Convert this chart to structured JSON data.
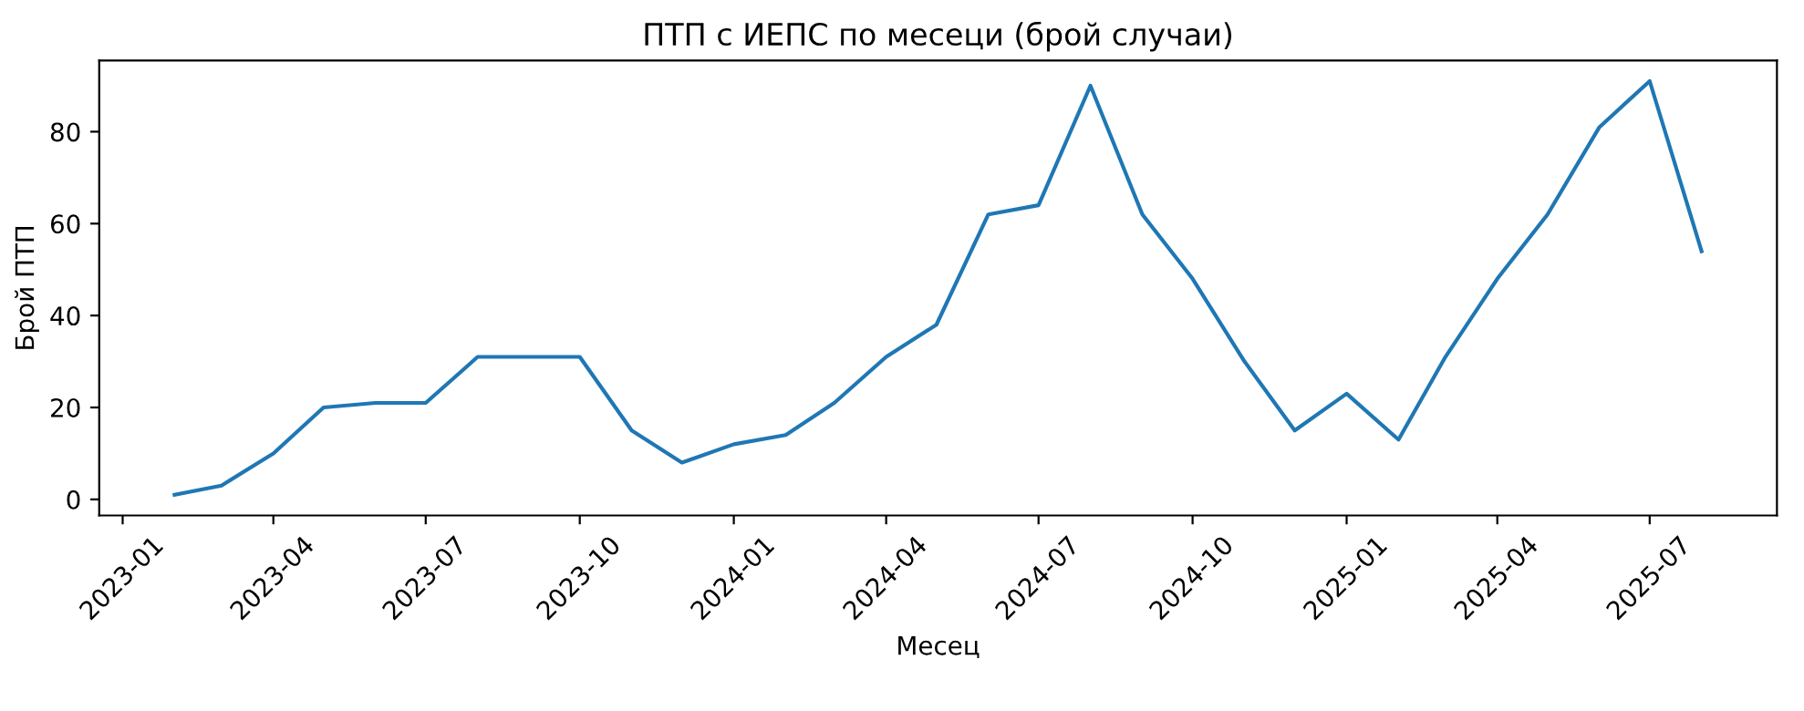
{
  "chart_data": {
    "type": "line",
    "title": "ПТП с ИЕПС по месеци (брой случаи)",
    "xlabel": "Месец",
    "ylabel": "Брой ПТП",
    "x": [
      "2023-02",
      "2023-03",
      "2023-04",
      "2023-05",
      "2023-06",
      "2023-07",
      "2023-08",
      "2023-09",
      "2023-10",
      "2023-11",
      "2023-12",
      "2024-01",
      "2024-02",
      "2024-03",
      "2024-04",
      "2024-05",
      "2024-06",
      "2024-07",
      "2024-08",
      "2024-09",
      "2024-10",
      "2024-11",
      "2024-12",
      "2025-01",
      "2025-02",
      "2025-03",
      "2025-04",
      "2025-05",
      "2025-06",
      "2025-07",
      "2025-08"
    ],
    "series": [
      {
        "color": "#1f77b4",
        "values": [
          1,
          3,
          10,
          20,
          21,
          21,
          31,
          31,
          31,
          15,
          8,
          12,
          14,
          21,
          31,
          38,
          62,
          64,
          90,
          62,
          48,
          30,
          15,
          23,
          13,
          31,
          48,
          62,
          81,
          91,
          54
        ]
      }
    ],
    "xlim": [
      "2022-12-18",
      "2025-09-15"
    ],
    "ylim": [
      -3.5,
      95.5
    ],
    "xticks": [
      "2023-01",
      "2023-04",
      "2023-07",
      "2023-10",
      "2024-01",
      "2024-04",
      "2024-07",
      "2024-10",
      "2025-01",
      "2025-04",
      "2025-07"
    ],
    "yticks": [
      0,
      20,
      40,
      60,
      80
    ],
    "grid": false,
    "legend": false,
    "marker": "none",
    "line_style": "solid"
  }
}
